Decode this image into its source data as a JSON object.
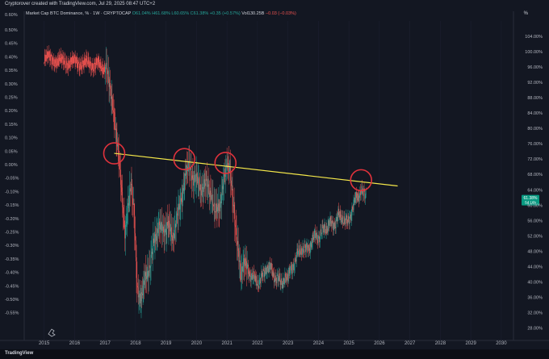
{
  "header": {
    "created_by": "Cryptorover created with TradingView.com, Jul 29, 2025 08:47 UTC+2",
    "symbol": "Market Cap BTC Dominance, % · 1W · CRYPTOCAP",
    "open": "O61.04%",
    "high": "H61.68%",
    "low": "L60.65%",
    "close": "C61.38%",
    "change": "+0.35 (+0.57%)",
    "vol": "Vol130.25B",
    "vol_change": "−0.03 (−0.03%)",
    "scale_label": "%"
  },
  "footer": {
    "logo": "TradingView"
  },
  "price_tag": {
    "value": "61.38%",
    "countdown": "5d 16h"
  },
  "colors": {
    "up": "#26a69a",
    "down": "#ef5350",
    "trendline": "#f5e84a",
    "circle": "#e0323c",
    "background": "#131722"
  },
  "chart_data": {
    "type": "candlestick",
    "x_ticks": [
      "2015",
      "2016",
      "2017",
      "2018",
      "2019",
      "2020",
      "2021",
      "2022",
      "2023",
      "2024",
      "2025",
      "2026",
      "2027",
      "2028",
      "2029",
      "2030"
    ],
    "left_axis_ticks": [
      "0.50%",
      "0.45%",
      "0.40%",
      "0.35%",
      "0.30%",
      "0.25%",
      "0.20%",
      "0.15%",
      "0.10%",
      "0.05%",
      "0.00%",
      "-0.05%",
      "-0.10%",
      "-0.15%",
      "-0.20%",
      "-0.25%",
      "-0.30%",
      "-0.35%",
      "-0.40%",
      "-0.45%",
      "-0.50%",
      "-0.55%"
    ],
    "right_axis_ticks": [
      "104.00%",
      "100.00%",
      "96.00%",
      "92.00%",
      "88.00%",
      "84.00%",
      "80.00%",
      "76.00%",
      "72.00%",
      "68.00%",
      "64.00%",
      "60.00%",
      "56.00%",
      "52.00%",
      "48.00%",
      "44.00%",
      "40.00%",
      "36.00%",
      "32.00%",
      "28.00%"
    ],
    "right_axis_top_partial": "0.60%",
    "x_range": [
      2014.4,
      2030.4
    ],
    "y_range_right": [
      26,
      108
    ],
    "series": [
      {
        "values": [
          [
            2015.0,
            98.5
          ],
          [
            2015.5,
            97.5
          ],
          [
            2016.0,
            97.2
          ],
          [
            2016.5,
            96.8
          ],
          [
            2016.9,
            96.3
          ],
          [
            2017.05,
            95.0
          ],
          [
            2017.15,
            90.0
          ],
          [
            2017.25,
            85.0
          ],
          [
            2017.35,
            78.0
          ],
          [
            2017.45,
            72.0
          ],
          [
            2017.55,
            62.0
          ],
          [
            2017.65,
            52.0
          ],
          [
            2017.75,
            60.0
          ],
          [
            2017.85,
            66.0
          ],
          [
            2017.95,
            58.0
          ],
          [
            2018.05,
            39.0
          ],
          [
            2018.15,
            36.0
          ],
          [
            2018.3,
            40.0
          ],
          [
            2018.45,
            44.0
          ],
          [
            2018.6,
            50.0
          ],
          [
            2018.75,
            55.0
          ],
          [
            2018.9,
            53.0
          ],
          [
            2019.05,
            55.0
          ],
          [
            2019.2,
            52.0
          ],
          [
            2019.35,
            56.0
          ],
          [
            2019.5,
            62.0
          ],
          [
            2019.65,
            68.0
          ],
          [
            2019.75,
            70.0
          ],
          [
            2019.9,
            67.0
          ],
          [
            2020.05,
            66.0
          ],
          [
            2020.2,
            64.0
          ],
          [
            2020.35,
            66.0
          ],
          [
            2020.5,
            62.0
          ],
          [
            2020.6,
            58.0
          ],
          [
            2020.75,
            60.0
          ],
          [
            2020.9,
            66.0
          ],
          [
            2021.0,
            70.0
          ],
          [
            2021.1,
            68.0
          ],
          [
            2021.2,
            60.0
          ],
          [
            2021.35,
            50.0
          ],
          [
            2021.45,
            42.0
          ],
          [
            2021.55,
            45.0
          ],
          [
            2021.7,
            43.0
          ],
          [
            2021.85,
            41.0
          ],
          [
            2022.0,
            40.0
          ],
          [
            2022.15,
            41.0
          ],
          [
            2022.3,
            44.0
          ],
          [
            2022.45,
            43.0
          ],
          [
            2022.6,
            41.0
          ],
          [
            2022.75,
            40.0
          ],
          [
            2022.9,
            41.0
          ],
          [
            2023.0,
            41.0
          ],
          [
            2023.15,
            44.0
          ],
          [
            2023.3,
            47.0
          ],
          [
            2023.45,
            49.0
          ],
          [
            2023.6,
            48.0
          ],
          [
            2023.75,
            50.0
          ],
          [
            2023.9,
            52.0
          ],
          [
            2024.05,
            52.0
          ],
          [
            2024.2,
            54.0
          ],
          [
            2024.35,
            55.0
          ],
          [
            2024.5,
            55.0
          ],
          [
            2024.65,
            57.0
          ],
          [
            2024.8,
            57.0
          ],
          [
            2024.95,
            55.0
          ],
          [
            2025.1,
            59.0
          ],
          [
            2025.25,
            62.0
          ],
          [
            2025.4,
            64.0
          ],
          [
            2025.5,
            63.0
          ],
          [
            2025.58,
            61.4
          ]
        ]
      }
    ],
    "annotations": {
      "trendline": [
        [
          2017.3,
          73.5
        ],
        [
          2026.6,
          65.0
        ]
      ],
      "circles": [
        [
          2017.3,
          73.5
        ],
        [
          2019.6,
          72.0
        ],
        [
          2020.95,
          71.0
        ],
        [
          2025.4,
          66.5
        ]
      ]
    }
  }
}
